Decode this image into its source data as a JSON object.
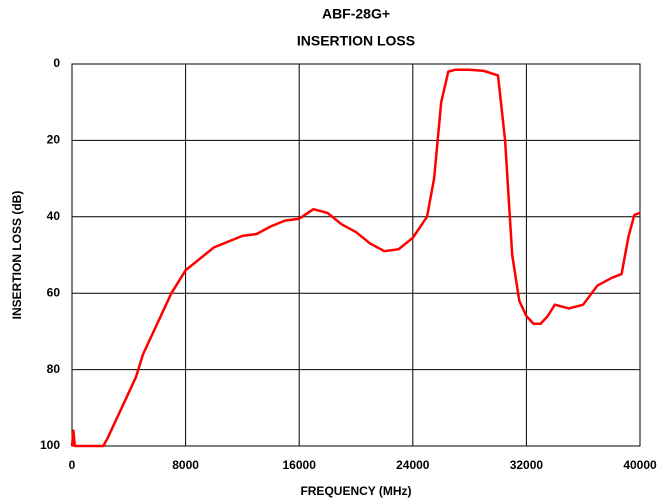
{
  "chart_data": {
    "type": "line",
    "title": "ABF-28G+",
    "subtitle": "INSERTION LOSS",
    "x_label": "FREQUENCY (MHz)",
    "y_label": "INSERTION LOSS (dB)",
    "x": [
      0,
      100,
      200,
      1500,
      2200,
      2500,
      3000,
      3500,
      4000,
      4500,
      5000,
      6000,
      7000,
      8000,
      9000,
      10000,
      11000,
      12000,
      13000,
      14000,
      15000,
      16000,
      17000,
      18000,
      19000,
      20000,
      21000,
      22000,
      23000,
      24000,
      25000,
      25500,
      26000,
      26500,
      27000,
      28000,
      29000,
      30000,
      30500,
      31000,
      31500,
      32000,
      32500,
      33000,
      33500,
      34000,
      35000,
      36000,
      37000,
      38000,
      38700,
      39200,
      39600,
      40000
    ],
    "series": [
      {
        "name": "Insertion Loss",
        "color": "#ff0000",
        "values": [
          100,
          96,
          100,
          100,
          100,
          98,
          94,
          90,
          86,
          82,
          76,
          68,
          60,
          54,
          51,
          48,
          46.5,
          45,
          44.5,
          42.5,
          41,
          40.5,
          38,
          39,
          42,
          44,
          47,
          49,
          48.5,
          45.5,
          40,
          30,
          10,
          2,
          1.5,
          1.5,
          1.8,
          3,
          20,
          50,
          62,
          66,
          68,
          68,
          66,
          63,
          64,
          63,
          58,
          56,
          55,
          45,
          39.5,
          39
        ]
      }
    ],
    "xlim": [
      0,
      40000
    ],
    "xticks": [
      0,
      8000,
      16000,
      24000,
      32000,
      40000
    ],
    "ylim": [
      100,
      0
    ],
    "yticks": [
      0,
      20,
      40,
      60,
      80,
      100
    ],
    "grid": true
  }
}
